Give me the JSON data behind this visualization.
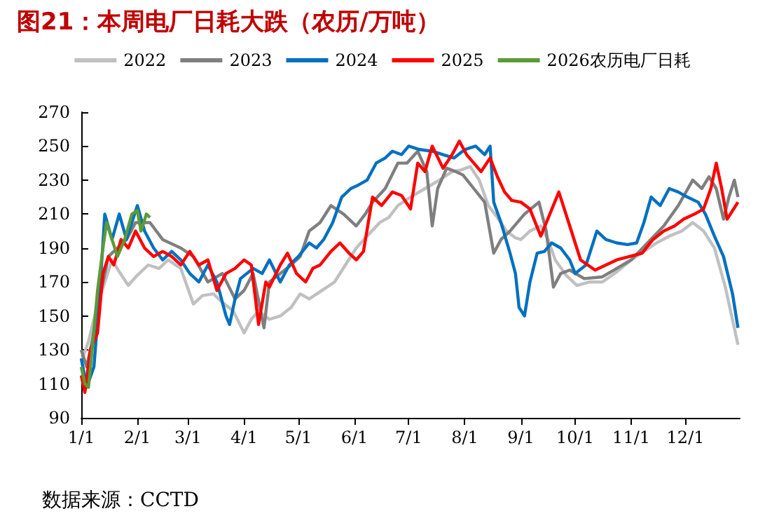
{
  "chart_data": {
    "type": "line",
    "title": "图21：本周电厂日耗大跌（农历/万吨）",
    "annotations": [
      "数据来源：CCTD"
    ],
    "xlim": [
      "--01-01",
      "--12-31"
    ],
    "xticks": [
      {
        "value": "--01-01",
        "label": "1/1"
      },
      {
        "value": "--02-01",
        "label": "2/1"
      },
      {
        "value": "--03-01",
        "label": "3/1"
      },
      {
        "value": "--04-01",
        "label": "4/1"
      },
      {
        "value": "--05-01",
        "label": "5/1"
      },
      {
        "value": "--06-01",
        "label": "6/1"
      },
      {
        "value": "--07-01",
        "label": "7/1"
      },
      {
        "value": "--08-01",
        "label": "8/1"
      },
      {
        "value": "--09-01",
        "label": "9/1"
      },
      {
        "value": "--10-01",
        "label": "10/1"
      },
      {
        "value": "--11-01",
        "label": "11/1"
      },
      {
        "value": "--12-01",
        "label": "12/1"
      }
    ],
    "ylim": [
      90,
      270
    ],
    "yticks": [
      90,
      110,
      130,
      150,
      170,
      190,
      210,
      230,
      250,
      270
    ],
    "grid": false,
    "legend": "top",
    "marker": "none",
    "line_style": "solid",
    "series": [
      {
        "name": "2022",
        "color": "#c0c0c0",
        "x": [
          "--01-01",
          "--01-05",
          "--01-10",
          "--01-14",
          "--01-18",
          "--01-22",
          "--01-27",
          "--02-01",
          "--02-07",
          "--02-13",
          "--02-18",
          "--02-25",
          "--03-04",
          "--03-09",
          "--03-15",
          "--03-20",
          "--03-26",
          "--04-01",
          "--04-05",
          "--04-09",
          "--04-15",
          "--04-21",
          "--04-27",
          "--05-02",
          "--05-07",
          "--05-14",
          "--05-21",
          "--05-27",
          "--06-02",
          "--06-08",
          "--06-15",
          "--06-20",
          "--06-25",
          "--07-02",
          "--07-10",
          "--07-18",
          "--07-25",
          "--07-30",
          "--08-04",
          "--08-09",
          "--08-14",
          "--08-19",
          "--08-24",
          "--08-29",
          "--09-01",
          "--09-06",
          "--09-12",
          "--09-16",
          "--09-20",
          "--09-26",
          "--10-02",
          "--10-09",
          "--10-16",
          "--10-24",
          "--11-01",
          "--11-08",
          "--11-15",
          "--11-22",
          "--11-29",
          "--12-05",
          "--12-11",
          "--12-17",
          "--12-23",
          "--12-30"
        ],
        "values": [
          123,
          135,
          157,
          170,
          183,
          176,
          168,
          174,
          180,
          178,
          183,
          178,
          157,
          162,
          163,
          158,
          153,
          140,
          148,
          153,
          148,
          150,
          155,
          163,
          160,
          165,
          170,
          180,
          190,
          197,
          205,
          208,
          215,
          220,
          225,
          230,
          235,
          236,
          238,
          230,
          215,
          208,
          200,
          196,
          195,
          200,
          203,
          195,
          183,
          174,
          168,
          170,
          170,
          176,
          183,
          188,
          193,
          197,
          200,
          205,
          200,
          190,
          167,
          133
        ]
      },
      {
        "name": "2023",
        "color": "#7f7f7f",
        "x": [
          "--01-01",
          "--01-04",
          "--01-07",
          "--01-11",
          "--01-16",
          "--01-21",
          "--01-26",
          "--01-31",
          "--02-08",
          "--02-15",
          "--02-25",
          "--03-04",
          "--03-12",
          "--03-20",
          "--03-27",
          "--04-01",
          "--04-06",
          "--04-12",
          "--04-15",
          "--04-21",
          "--04-27",
          "--05-02",
          "--05-07",
          "--05-13",
          "--05-19",
          "--05-26",
          "--06-02",
          "--06-07",
          "--06-11",
          "--06-18",
          "--06-25",
          "--06-30",
          "--07-06",
          "--07-11",
          "--07-14",
          "--07-17",
          "--07-22",
          "--07-27",
          "--07-31",
          "--08-06",
          "--08-12",
          "--08-17",
          "--08-21",
          "--08-26",
          "--09-03",
          "--09-11",
          "--09-15",
          "--09-19",
          "--09-23",
          "--09-28",
          "--10-06",
          "--10-16",
          "--10-24",
          "--11-01",
          "--11-10",
          "--11-19",
          "--11-27",
          "--12-05",
          "--12-10",
          "--12-14",
          "--12-18",
          "--12-22",
          "--12-25",
          "--12-28",
          "--12-30"
        ],
        "values": [
          130,
          120,
          135,
          160,
          185,
          190,
          195,
          205,
          205,
          195,
          190,
          185,
          170,
          175,
          160,
          165,
          175,
          143,
          170,
          175,
          180,
          185,
          200,
          205,
          215,
          210,
          203,
          210,
          217,
          225,
          240,
          240,
          247,
          235,
          203,
          225,
          237,
          235,
          233,
          225,
          217,
          187,
          195,
          200,
          210,
          217,
          200,
          167,
          175,
          177,
          172,
          173,
          178,
          183,
          193,
          203,
          215,
          230,
          225,
          232,
          225,
          207,
          220,
          230,
          220
        ]
      },
      {
        "name": "2024",
        "color": "#0070c0",
        "x": [
          "--01-01",
          "--01-04",
          "--01-08",
          "--01-11",
          "--01-14",
          "--01-18",
          "--01-22",
          "--01-26",
          "--01-29",
          "--02-01",
          "--02-05",
          "--02-10",
          "--02-15",
          "--02-20",
          "--02-25",
          "--03-02",
          "--03-07",
          "--03-12",
          "--03-17",
          "--03-22",
          "--03-24",
          "--03-27",
          "--03-30",
          "--04-06",
          "--04-11",
          "--04-15",
          "--04-21",
          "--04-26",
          "--05-01",
          "--05-07",
          "--05-11",
          "--05-15",
          "--05-20",
          "--05-25",
          "--05-30",
          "--06-03",
          "--06-08",
          "--06-13",
          "--06-18",
          "--06-22",
          "--06-27",
          "--07-01",
          "--07-07",
          "--07-14",
          "--07-20",
          "--07-26",
          "--08-01",
          "--08-07",
          "--08-12",
          "--08-15",
          "--08-17",
          "--08-21",
          "--08-26",
          "--08-29",
          "--08-31",
          "--09-03",
          "--09-06",
          "--09-10",
          "--09-14",
          "--09-18",
          "--09-23",
          "--09-28",
          "--10-01",
          "--10-07",
          "--10-13",
          "--10-18",
          "--10-24",
          "--10-30",
          "--11-04",
          "--11-08",
          "--11-12",
          "--11-17",
          "--11-22",
          "--11-27",
          "--12-02",
          "--12-08",
          "--12-12",
          "--12-17",
          "--12-22",
          "--12-27",
          "--12-30"
        ],
        "values": [
          125,
          108,
          120,
          160,
          210,
          195,
          210,
          195,
          205,
          215,
          200,
          190,
          183,
          188,
          183,
          175,
          170,
          180,
          170,
          150,
          145,
          160,
          172,
          178,
          175,
          183,
          170,
          180,
          185,
          193,
          190,
          195,
          205,
          220,
          225,
          227,
          230,
          240,
          243,
          247,
          245,
          250,
          248,
          247,
          245,
          243,
          248,
          250,
          245,
          250,
          217,
          205,
          187,
          175,
          155,
          150,
          170,
          187,
          188,
          193,
          190,
          183,
          175,
          180,
          200,
          195,
          193,
          192,
          193,
          205,
          220,
          215,
          225,
          223,
          220,
          217,
          210,
          197,
          185,
          163,
          143
        ]
      },
      {
        "name": "2025",
        "color": "#ff0000",
        "x": [
          "--01-01",
          "--01-03",
          "--01-06",
          "--01-10",
          "--01-13",
          "--01-16",
          "--01-19",
          "--01-23",
          "--01-27",
          "--01-31",
          "--02-05",
          "--02-10",
          "--02-15",
          "--02-20",
          "--02-25",
          "--03-02",
          "--03-07",
          "--03-12",
          "--03-17",
          "--03-22",
          "--03-27",
          "--04-01",
          "--04-05",
          "--04-09",
          "--04-13",
          "--04-15",
          "--04-21",
          "--04-25",
          "--04-30",
          "--05-05",
          "--05-09",
          "--05-13",
          "--05-19",
          "--05-24",
          "--05-29",
          "--06-02",
          "--06-06",
          "--06-11",
          "--06-16",
          "--06-22",
          "--06-27",
          "--07-02",
          "--07-06",
          "--07-10",
          "--07-14",
          "--07-20",
          "--07-25",
          "--07-29",
          "--08-02",
          "--08-06",
          "--08-10",
          "--08-15",
          "--08-19",
          "--08-23",
          "--08-27",
          "--09-01",
          "--09-06",
          "--09-12",
          "--09-17",
          "--09-22",
          "--09-28",
          "--10-04",
          "--10-12",
          "--10-18",
          "--10-24",
          "--10-31",
          "--11-07",
          "--11-13",
          "--11-19",
          "--11-25",
          "--11-30",
          "--12-06",
          "--12-11",
          "--12-15",
          "--12-18",
          "--12-21",
          "--12-24",
          "--12-27",
          "--12-30"
        ],
        "values": [
          115,
          105,
          130,
          140,
          175,
          185,
          180,
          195,
          190,
          200,
          190,
          185,
          188,
          185,
          180,
          188,
          180,
          183,
          165,
          175,
          178,
          183,
          180,
          145,
          170,
          167,
          180,
          187,
          175,
          170,
          178,
          180,
          188,
          193,
          187,
          183,
          188,
          220,
          215,
          223,
          221,
          213,
          240,
          235,
          250,
          237,
          245,
          253,
          245,
          240,
          235,
          243,
          232,
          223,
          218,
          217,
          213,
          197,
          210,
          223,
          203,
          183,
          177,
          180,
          183,
          185,
          187,
          195,
          200,
          203,
          207,
          210,
          213,
          225,
          240,
          225,
          207,
          212,
          217
        ]
      },
      {
        "name": "2026农历电厂日耗",
        "color": "#5b9b35",
        "x": [
          "--01-01",
          "--01-03",
          "--01-05",
          "--01-07",
          "--01-10",
          "--01-13",
          "--01-15",
          "--01-18",
          "--01-21",
          "--01-25",
          "--01-29",
          "--02-01",
          "--02-03",
          "--02-06",
          "--02-08"
        ],
        "values": [
          120,
          110,
          108,
          130,
          165,
          190,
          205,
          195,
          185,
          195,
          210,
          212,
          200,
          210,
          208
        ]
      }
    ]
  }
}
